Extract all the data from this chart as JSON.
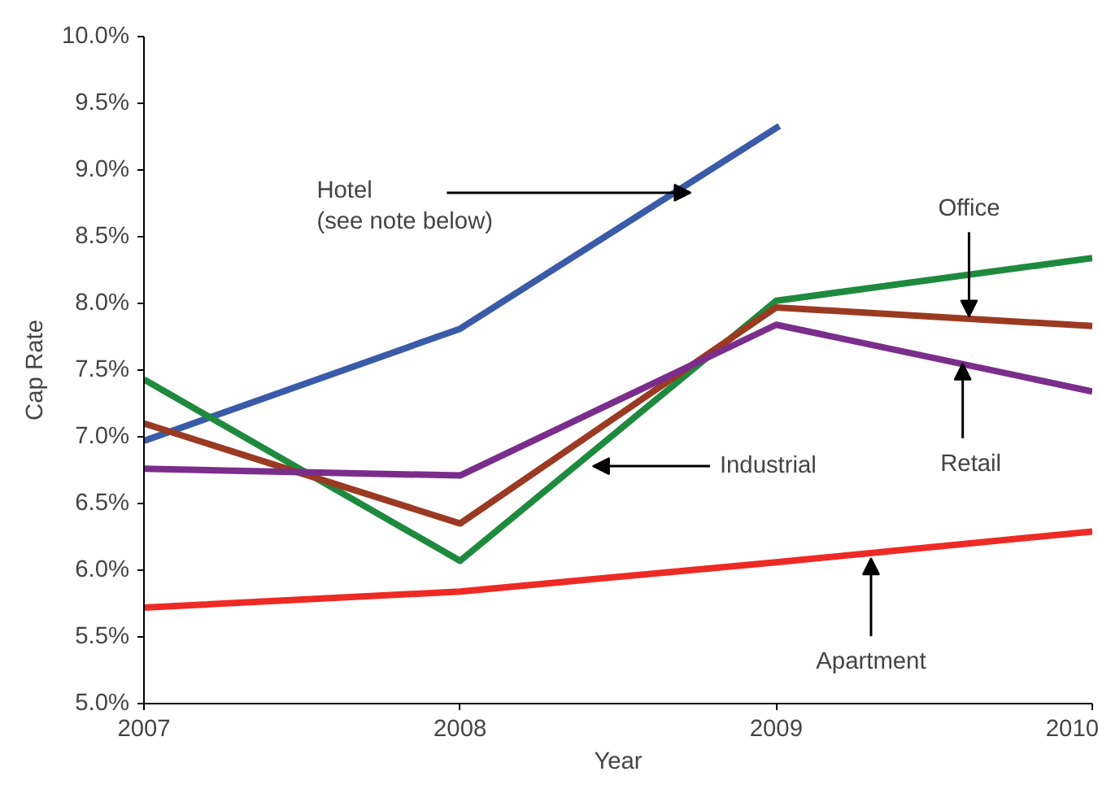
{
  "chart_data": {
    "type": "line",
    "xlabel": "Year",
    "ylabel": "Cap Rate",
    "xlim": [
      2007,
      2010
    ],
    "xticks": [
      2007,
      2008,
      2009,
      2010
    ],
    "ylim": [
      5,
      10
    ],
    "yticks": [
      {
        "value": 5,
        "label": "5.0%"
      },
      {
        "value": 5.5,
        "label": "5.5%"
      },
      {
        "value": 6,
        "label": "6.0%"
      },
      {
        "value": 6.5,
        "label": "6.5%"
      },
      {
        "value": 7,
        "label": "7.0%"
      },
      {
        "value": 7.5,
        "label": "7.5%"
      },
      {
        "value": 8,
        "label": "8.0%"
      },
      {
        "value": 8.5,
        "label": "8.5%"
      },
      {
        "value": 9,
        "label": "9.0%"
      },
      {
        "value": 9.5,
        "label": "9.5%"
      },
      {
        "value": 10,
        "label": "10.0%"
      }
    ],
    "grid": false,
    "line_style": "solid",
    "x": [
      2007,
      2008,
      2009,
      2010
    ],
    "series": [
      {
        "color": "#3a5ba8",
        "x": [
          2007,
          2008,
          2009.01
        ],
        "values": [
          6.97,
          7.81,
          9.33
        ]
      },
      {
        "color": "#1e8a3e",
        "values": [
          7.43,
          6.07,
          8.02,
          8.34
        ]
      },
      {
        "color": "#9b3a22",
        "values": [
          7.1,
          6.35,
          7.97,
          7.83
        ]
      },
      {
        "color": "#7b2d8b",
        "values": [
          6.76,
          6.71,
          7.84,
          7.34
        ]
      },
      {
        "color": "#ee2a24",
        "values": [
          5.72,
          5.84,
          6.06,
          6.29
        ]
      }
    ],
    "annotations": [
      {
        "text": "Hotel\n(see note below)",
        "x": 2008.73,
        "y": 8.83
      },
      {
        "text": "Office",
        "x": 2009.61,
        "y": 7.9
      },
      {
        "text": "Industrial",
        "x": 2008.42,
        "y": 6.78
      },
      {
        "text": "Retail",
        "x": 2009.59,
        "y": 7.55
      },
      {
        "text": "Apartment",
        "x": 2009.3,
        "y": 6.09
      }
    ]
  }
}
